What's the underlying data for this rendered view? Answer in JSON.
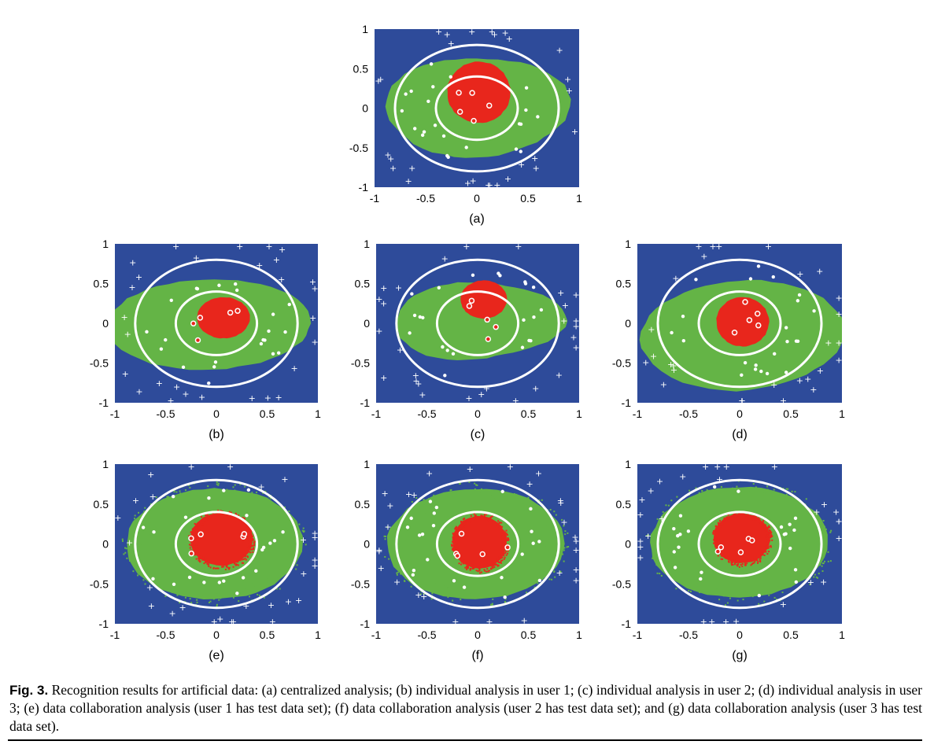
{
  "colors": {
    "background_class": "#2e4b9a",
    "middle_class": "#64b446",
    "inner_class": "#e8261c",
    "boundary": "#ffffff"
  },
  "panels": [
    {
      "id": "a",
      "label": "(a)",
      "x_ticks": [
        "-1",
        "-0.5",
        "0",
        "0.5",
        "1"
      ],
      "y_ticks": [
        "1",
        "0.5",
        "0",
        "-0.5",
        "-1"
      ],
      "xlim": [
        -1,
        1
      ],
      "ylim": [
        -1,
        1
      ]
    },
    {
      "id": "b",
      "label": "(b)",
      "x_ticks": [
        "-1",
        "-0.5",
        "0",
        "0.5",
        "1"
      ],
      "y_ticks": [
        "1",
        "0.5",
        "0",
        "-0.5",
        "-1"
      ],
      "xlim": [
        -1,
        1
      ],
      "ylim": [
        -1,
        1
      ]
    },
    {
      "id": "c",
      "label": "(c)",
      "x_ticks": [
        "-1",
        "-0.5",
        "0",
        "0.5",
        "1"
      ],
      "y_ticks": [
        "1",
        "0.5",
        "0",
        "-0.5",
        "-1"
      ],
      "xlim": [
        -1,
        1
      ],
      "ylim": [
        -1,
        1
      ]
    },
    {
      "id": "d",
      "label": "(d)",
      "x_ticks": [
        "-1",
        "-0.5",
        "0",
        "0.5",
        "1"
      ],
      "y_ticks": [
        "1",
        "0.5",
        "0",
        "-0.5",
        "-1"
      ],
      "xlim": [
        -1,
        1
      ],
      "ylim": [
        -1,
        1
      ]
    },
    {
      "id": "e",
      "label": "(e)",
      "x_ticks": [
        "-1",
        "-0.5",
        "0",
        "0.5",
        "1"
      ],
      "y_ticks": [
        "1",
        "0.5",
        "0",
        "-0.5",
        "-1"
      ],
      "xlim": [
        -1,
        1
      ],
      "ylim": [
        -1,
        1
      ]
    },
    {
      "id": "f",
      "label": "(f)",
      "x_ticks": [
        "-1",
        "-0.5",
        "0",
        "0.5",
        "1"
      ],
      "y_ticks": [
        "1",
        "0.5",
        "0",
        "-0.5",
        "-1"
      ],
      "xlim": [
        -1,
        1
      ],
      "ylim": [
        -1,
        1
      ]
    },
    {
      "id": "g",
      "label": "(g)",
      "x_ticks": [
        "-1",
        "-0.5",
        "0",
        "0.5",
        "1"
      ],
      "y_ticks": [
        "1",
        "0.5",
        "0",
        "-0.5",
        "-1"
      ],
      "xlim": [
        -1,
        1
      ],
      "ylim": [
        -1,
        1
      ]
    }
  ],
  "caption": {
    "prefix": "Fig. 3.",
    "text": " Recognition results for artificial data: (a) centralized analysis; (b) individual analysis in user 1; (c) individual analysis in user 2; (d) individual analysis in user 3; (e) data collaboration analysis (user 1 has test data set); (f) data collaboration analysis (user 2 has test data set); and (g) data collaboration analysis (user 3 has test data set)."
  }
}
